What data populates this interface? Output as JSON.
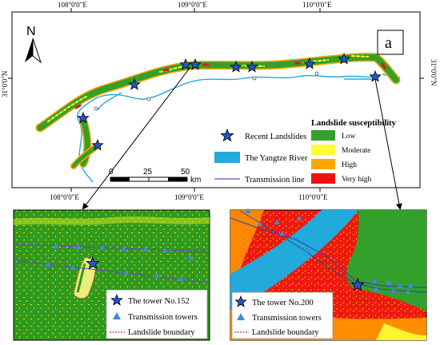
{
  "main_map": {
    "panel_label": "a",
    "north_label": "N",
    "top_ticks": [
      "108°0'0\"E",
      "109°0'0\"E",
      "110°0'0\"E"
    ],
    "bottom_ticks": [
      "108°0'0\"E",
      "109°0'0\"E",
      "110°0'0\"E"
    ],
    "left_tick": "31°0'0\"N",
    "right_tick": "31°0'0\"N",
    "scale_bar": {
      "labels": [
        "0",
        "25",
        "50"
      ],
      "unit": "km"
    },
    "legend": {
      "recent_landslides": "Recent Landslides",
      "yangtze_river": "The Yangtze River",
      "transmission_line": "Transmission line",
      "susceptibility_title": "Landslide susceptibility",
      "classes": [
        {
          "label": "Low",
          "color": "#33a02c"
        },
        {
          "label": "Moderate",
          "color": "#ffff33"
        },
        {
          "label": "High",
          "color": "#ffa500"
        },
        {
          "label": "Very high",
          "color": "#ee1111"
        }
      ]
    },
    "colors": {
      "river": "#22aadd",
      "line": "#7744bb",
      "star": "#2255cc"
    }
  },
  "inset_left": {
    "tower_label": "The tower No.152",
    "towers_label": "Transmission towers",
    "boundary_label": "Landslide boundary"
  },
  "inset_right": {
    "tower_label": "The tower No.200",
    "towers_label": "Transmission towers",
    "boundary_label": "Landslide boundary"
  },
  "icons": [
    "north-arrow-icon",
    "star-icon",
    "triangle-icon"
  ]
}
